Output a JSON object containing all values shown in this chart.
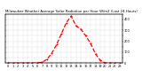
{
  "title": "Milwaukee Weather Average Solar Radiation per Hour W/m2 (Last 24 Hours)",
  "hours": [
    0,
    1,
    2,
    3,
    4,
    5,
    6,
    7,
    8,
    9,
    10,
    11,
    12,
    13,
    14,
    15,
    16,
    17,
    18,
    19,
    20,
    21,
    22,
    23
  ],
  "values": [
    0,
    0,
    0,
    0,
    0,
    0,
    2,
    8,
    35,
    90,
    170,
    270,
    370,
    430,
    340,
    310,
    250,
    180,
    85,
    25,
    3,
    0,
    0,
    0
  ],
  "line_color": "#ff0000",
  "background_color": "#ffffff",
  "grid_color": "#888888",
  "ylim": [
    0,
    450
  ],
  "ytick_values": [
    0,
    50,
    100,
    150,
    200,
    250,
    300,
    350,
    400,
    450
  ],
  "ytick_labels": [
    "0",
    "",
    "100",
    "",
    "200",
    "",
    "300",
    "",
    "400",
    ""
  ],
  "xlabel_fontsize": 2.5,
  "ylabel_fontsize": 2.5,
  "title_fontsize": 2.8,
  "linewidth": 0.9,
  "marker_size": 1.0
}
